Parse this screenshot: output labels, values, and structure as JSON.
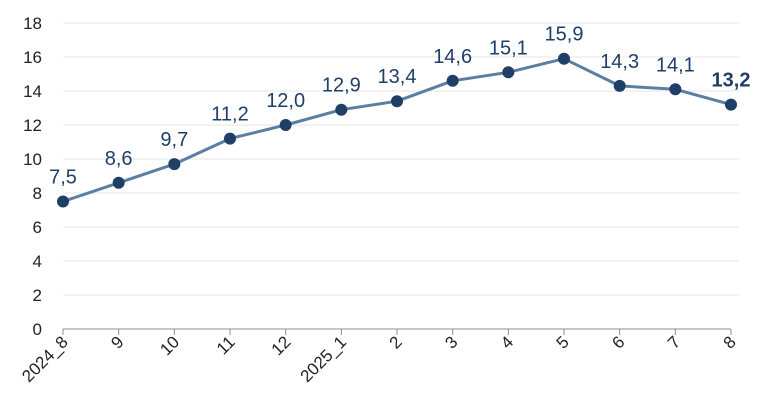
{
  "chart_data": {
    "type": "line",
    "title": "",
    "xlabel": "",
    "ylabel": "",
    "categories": [
      "2024_8",
      "9",
      "10",
      "11",
      "12",
      "2025_1",
      "2",
      "3",
      "4",
      "5",
      "6",
      "7",
      "8"
    ],
    "series": [
      {
        "values": [
          7.5,
          8.6,
          9.7,
          11.2,
          12.0,
          12.9,
          13.4,
          14.6,
          15.1,
          15.9,
          14.3,
          14.1,
          13.2
        ]
      }
    ],
    "data_labels": [
      "7,5",
      "8,6",
      "9,7",
      "11,2",
      "12,0",
      "12,9",
      "13,4",
      "14,6",
      "15,1",
      "15,9",
      "14,3",
      "14,1",
      "13,2"
    ],
    "bold_label_index": 12,
    "y_ticks": [
      "0",
      "2",
      "4",
      "6",
      "8",
      "10",
      "12",
      "14",
      "16",
      "18"
    ],
    "ylim": [
      0,
      18
    ],
    "grid": true,
    "legend": "none",
    "colors": {
      "line": "#5b7fa3",
      "marker": "#1f3f66",
      "label": "#1f3f66",
      "grid": "#e6e6e6",
      "axis": "#8c8c8c"
    }
  }
}
